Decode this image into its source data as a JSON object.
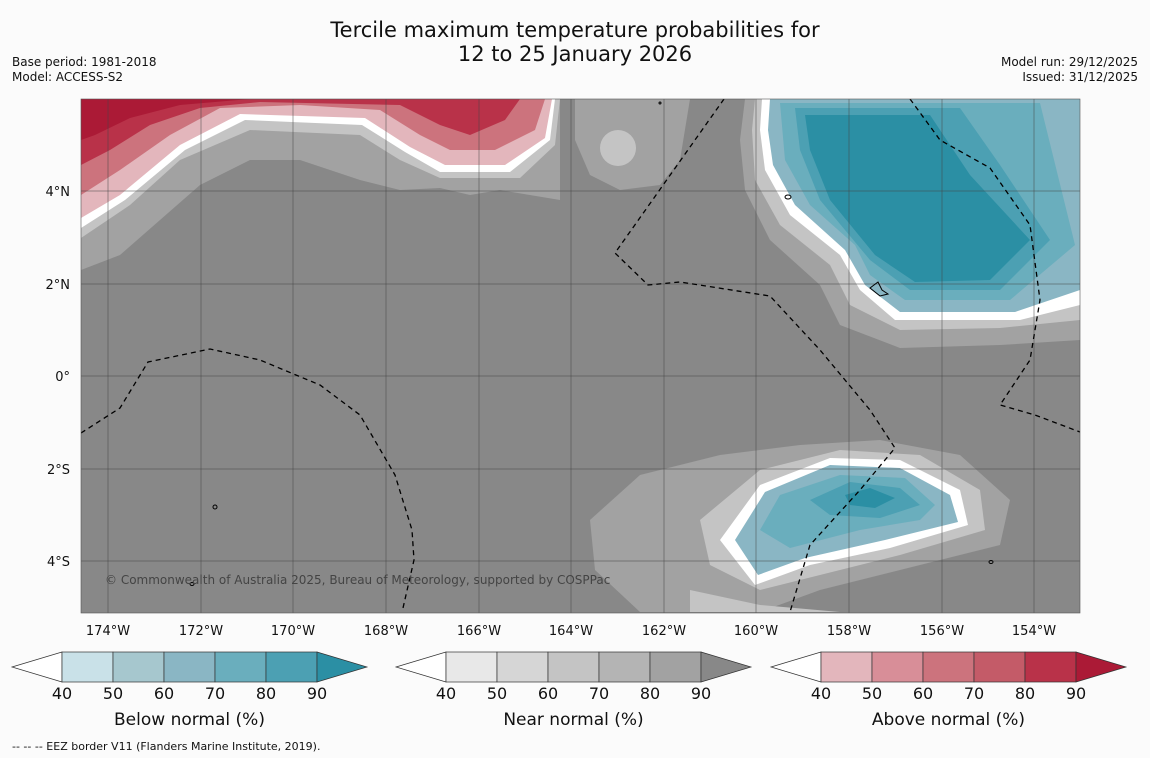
{
  "title_line1": "Tercile maximum temperature probabilities for",
  "title_line2": "12 to 25 January 2026",
  "base_period": "Base period: 1981-2018",
  "model": "Model: ACCESS-S2",
  "model_run": "Model run: 29/12/2025",
  "issued": "Issued: 31/12/2025",
  "copyright": "© Commonwealth of Australia 2025, Bureau of Meteorology, supported by COSPPac",
  "lon_labels": [
    "174°W",
    "172°W",
    "170°W",
    "168°W",
    "166°W",
    "164°W",
    "162°W",
    "160°W",
    "158°W",
    "156°W",
    "154°W"
  ],
  "lat_labels": [
    "4°N",
    "2°N",
    "0°",
    "2°S",
    "4°S"
  ],
  "colorbars": [
    {
      "label": "Below normal (%)",
      "ticks": [
        "40",
        "50",
        "60",
        "70",
        "80",
        "90"
      ],
      "colors": [
        "#ffffff",
        "#c9e1e8",
        "#a6c7ce",
        "#8ab6c4",
        "#6aaebd",
        "#4ca0b3",
        "#2b8fa4"
      ]
    },
    {
      "label": "Near normal (%)",
      "ticks": [
        "40",
        "50",
        "60",
        "70",
        "80",
        "90"
      ],
      "colors": [
        "#ffffff",
        "#e8e8e8",
        "#d6d6d6",
        "#c4c4c4",
        "#b4b4b4",
        "#a2a2a2",
        "#888888"
      ]
    },
    {
      "label": "Above normal (%)",
      "ticks": [
        "40",
        "50",
        "60",
        "70",
        "80",
        "90"
      ],
      "colors": [
        "#ffffff",
        "#e3b6bc",
        "#d88e98",
        "#cc737d",
        "#c45b68",
        "#b93249",
        "#ab1a36"
      ]
    }
  ],
  "footer": "--  --  -- EEZ border V11 (Flanders Marine Institute, 2019)."
}
